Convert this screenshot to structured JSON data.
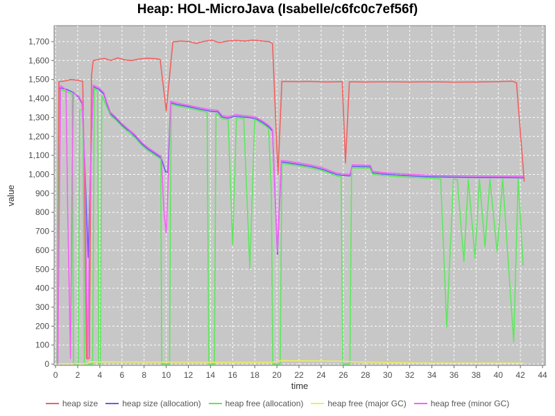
{
  "title": "Heap: HOL-MicroJava (Isabelle/c6fc0c7ef56f)",
  "chart_data": {
    "type": "line",
    "title": "Heap: HOL-MicroJava (Isabelle/c6fc0c7ef56f)",
    "xlabel": "time",
    "ylabel": "value",
    "xlim": [
      -0.13,
      44.25
    ],
    "ylim": [
      -7,
      1784
    ],
    "x_ticks": [
      0,
      2,
      4,
      6,
      8,
      10,
      12,
      14,
      16,
      18,
      20,
      22,
      24,
      26,
      28,
      30,
      32,
      34,
      36,
      38,
      40,
      42,
      44
    ],
    "y_ticks": [
      0,
      100,
      200,
      300,
      400,
      500,
      600,
      700,
      800,
      900,
      1000,
      1100,
      1200,
      1300,
      1400,
      1500,
      1600,
      1700
    ],
    "y_tick_labels": [
      "0",
      "100",
      "200",
      "300",
      "400",
      "500",
      "600",
      "700",
      "800",
      "900",
      "1,000",
      "1,100",
      "1,200",
      "1,300",
      "1,400",
      "1,500",
      "1,600",
      "1,700"
    ],
    "grid": true,
    "legend_position": "bottom",
    "colors": {
      "plot_bg": "#c7c7c7",
      "plot_border": "#7f7f7f",
      "grid": "#ffffff",
      "tick": "#666666",
      "tick_label": "#4d4d4d",
      "axis_label": "#333333",
      "title": "#000000",
      "legend_label": "#555555"
    },
    "series": [
      {
        "name": "heap size",
        "color": "#f35f5f",
        "points": [
          [
            0.15,
            15
          ],
          [
            0.3,
            1488
          ],
          [
            0.8,
            1492
          ],
          [
            1.4,
            1500
          ],
          [
            2.0,
            1496
          ],
          [
            2.45,
            1490
          ],
          [
            2.6,
            1000
          ],
          [
            2.8,
            30
          ],
          [
            3.05,
            30
          ],
          [
            3.25,
            1520
          ],
          [
            3.4,
            1600
          ],
          [
            3.9,
            1606
          ],
          [
            4.4,
            1612
          ],
          [
            5.0,
            1600
          ],
          [
            5.6,
            1614
          ],
          [
            6.2,
            1604
          ],
          [
            6.9,
            1600
          ],
          [
            7.5,
            1608
          ],
          [
            8.3,
            1612
          ],
          [
            9.0,
            1610
          ],
          [
            9.45,
            1606
          ],
          [
            10.0,
            1335
          ],
          [
            10.6,
            1698
          ],
          [
            11.3,
            1703
          ],
          [
            12.1,
            1700
          ],
          [
            12.7,
            1690
          ],
          [
            13.3,
            1700
          ],
          [
            14.1,
            1708
          ],
          [
            14.8,
            1694
          ],
          [
            15.5,
            1703
          ],
          [
            16.3,
            1706
          ],
          [
            17.1,
            1703
          ],
          [
            17.9,
            1708
          ],
          [
            18.7,
            1703
          ],
          [
            19.3,
            1700
          ],
          [
            19.6,
            1690
          ],
          [
            20.1,
            1000
          ],
          [
            20.45,
            1490
          ],
          [
            21.5,
            1489
          ],
          [
            23.0,
            1490
          ],
          [
            24.6,
            1487
          ],
          [
            25.9,
            1489
          ],
          [
            26.2,
            1060
          ],
          [
            26.55,
            1488
          ],
          [
            28.0,
            1487
          ],
          [
            30.0,
            1488
          ],
          [
            32.0,
            1487
          ],
          [
            34.0,
            1488
          ],
          [
            36.0,
            1486
          ],
          [
            38.0,
            1487
          ],
          [
            40.0,
            1489
          ],
          [
            41.3,
            1491
          ],
          [
            41.65,
            1483
          ],
          [
            42.35,
            962
          ]
        ]
      },
      {
        "name": "heap size (allocation)",
        "color": "#5f5fe8",
        "points": [
          [
            0.15,
            10
          ],
          [
            0.4,
            1456
          ],
          [
            1.0,
            1448
          ],
          [
            1.6,
            1432
          ],
          [
            2.1,
            1406
          ],
          [
            2.4,
            1372
          ],
          [
            2.65,
            1050
          ],
          [
            2.95,
            562
          ],
          [
            3.15,
            1000
          ],
          [
            3.4,
            1462
          ],
          [
            3.9,
            1449
          ],
          [
            4.35,
            1424
          ],
          [
            4.65,
            1368
          ],
          [
            4.95,
            1320
          ],
          [
            5.5,
            1291
          ],
          [
            6.0,
            1260
          ],
          [
            6.45,
            1237
          ],
          [
            6.7,
            1228
          ],
          [
            7.2,
            1200
          ],
          [
            7.75,
            1163
          ],
          [
            8.35,
            1133
          ],
          [
            8.85,
            1114
          ],
          [
            9.3,
            1096
          ],
          [
            9.55,
            1086
          ],
          [
            9.95,
            1012
          ],
          [
            10.15,
            1012
          ],
          [
            10.4,
            1377
          ],
          [
            11.0,
            1368
          ],
          [
            12.0,
            1357
          ],
          [
            13.0,
            1344
          ],
          [
            14.0,
            1333
          ],
          [
            14.65,
            1330
          ],
          [
            15.05,
            1302
          ],
          [
            15.6,
            1296
          ],
          [
            16.3,
            1307
          ],
          [
            17.0,
            1302
          ],
          [
            17.6,
            1299
          ],
          [
            18.2,
            1291
          ],
          [
            18.75,
            1272
          ],
          [
            19.25,
            1251
          ],
          [
            19.6,
            1228
          ],
          [
            20.05,
            578
          ],
          [
            20.4,
            1065
          ],
          [
            21.0,
            1061
          ],
          [
            22.0,
            1052
          ],
          [
            23.0,
            1042
          ],
          [
            24.0,
            1029
          ],
          [
            24.8,
            1012
          ],
          [
            25.4,
            999
          ],
          [
            26.0,
            994
          ],
          [
            26.6,
            992
          ],
          [
            26.8,
            1042
          ],
          [
            27.6,
            1041
          ],
          [
            28.45,
            1040
          ],
          [
            28.65,
            1008
          ],
          [
            29.5,
            1002
          ],
          [
            30.5,
            998
          ],
          [
            31.5,
            994
          ],
          [
            32.5,
            991
          ],
          [
            33.5,
            988
          ],
          [
            34.5,
            986
          ],
          [
            36.0,
            985
          ],
          [
            38.0,
            984
          ],
          [
            40.0,
            983
          ],
          [
            42.3,
            982
          ]
        ]
      },
      {
        "name": "heap free (allocation)",
        "color": "#5ce85c",
        "points": [
          [
            0.15,
            5
          ],
          [
            0.4,
            1446
          ],
          [
            1.0,
            1438
          ],
          [
            1.5,
            1422
          ],
          [
            1.62,
            0
          ],
          [
            2.05,
            0
          ],
          [
            2.18,
            1342
          ],
          [
            2.48,
            1336
          ],
          [
            2.6,
            0
          ],
          [
            3.35,
            0
          ],
          [
            3.5,
            1452
          ],
          [
            3.8,
            1440
          ],
          [
            3.9,
            0
          ],
          [
            4.05,
            0
          ],
          [
            4.18,
            1415
          ],
          [
            4.95,
            1312
          ],
          [
            5.5,
            1283
          ],
          [
            6.0,
            1252
          ],
          [
            6.45,
            1229
          ],
          [
            7.2,
            1192
          ],
          [
            7.75,
            1155
          ],
          [
            8.35,
            1125
          ],
          [
            8.85,
            1106
          ],
          [
            9.3,
            1088
          ],
          [
            9.5,
            1080
          ],
          [
            9.6,
            0
          ],
          [
            10.3,
            0
          ],
          [
            10.45,
            1369
          ],
          [
            11.0,
            1360
          ],
          [
            12.0,
            1349
          ],
          [
            13.0,
            1336
          ],
          [
            13.7,
            1328
          ],
          [
            13.85,
            0
          ],
          [
            14.35,
            0
          ],
          [
            14.5,
            1322
          ],
          [
            15.05,
            1294
          ],
          [
            15.6,
            1288
          ],
          [
            16.0,
            630
          ],
          [
            16.35,
            1299
          ],
          [
            17.0,
            1294
          ],
          [
            17.55,
            505
          ],
          [
            18.0,
            1290
          ],
          [
            18.75,
            1264
          ],
          [
            19.25,
            1243
          ],
          [
            19.5,
            900
          ],
          [
            19.62,
            0
          ],
          [
            20.3,
            0
          ],
          [
            20.45,
            1057
          ],
          [
            21.0,
            1053
          ],
          [
            22.0,
            1044
          ],
          [
            23.0,
            1034
          ],
          [
            24.0,
            1021
          ],
          [
            24.8,
            1004
          ],
          [
            25.4,
            991
          ],
          [
            25.8,
            986
          ],
          [
            25.95,
            0
          ],
          [
            26.6,
            0
          ],
          [
            26.75,
            1034
          ],
          [
            28.4,
            1032
          ],
          [
            28.65,
            1000
          ],
          [
            29.5,
            994
          ],
          [
            30.5,
            990
          ],
          [
            31.5,
            986
          ],
          [
            32.5,
            983
          ],
          [
            33.5,
            980
          ],
          [
            34.4,
            978
          ],
          [
            34.8,
            975
          ],
          [
            35.35,
            195
          ],
          [
            35.95,
            975
          ],
          [
            36.3,
            972
          ],
          [
            36.9,
            540
          ],
          [
            37.3,
            973
          ],
          [
            37.9,
            557
          ],
          [
            38.3,
            974
          ],
          [
            38.8,
            618
          ],
          [
            39.25,
            975
          ],
          [
            39.9,
            590
          ],
          [
            40.4,
            976
          ],
          [
            41.4,
            116
          ],
          [
            41.8,
            975
          ],
          [
            42.25,
            519
          ]
        ]
      },
      {
        "name": "heap free (major GC)",
        "color": "#eded5e",
        "points": [
          [
            0.15,
            2
          ],
          [
            2.9,
            2
          ],
          [
            3.05,
            12
          ],
          [
            6.0,
            11
          ],
          [
            10.0,
            10
          ],
          [
            14.0,
            9
          ],
          [
            19.6,
            9
          ],
          [
            20.35,
            18
          ],
          [
            23.0,
            17
          ],
          [
            26.0,
            15
          ],
          [
            27.0,
            12
          ],
          [
            29.0,
            9
          ],
          [
            32.0,
            6
          ],
          [
            36.0,
            5
          ],
          [
            42.3,
            5
          ]
        ]
      },
      {
        "name": "heap free (minor GC)",
        "color": "#f75ff7",
        "points": [
          [
            0.2,
            0
          ],
          [
            0.45,
            1468
          ],
          [
            0.95,
            1446
          ],
          [
            1.1,
            800
          ],
          [
            1.35,
            30
          ],
          [
            1.5,
            1000
          ],
          [
            1.6,
            1428
          ],
          [
            2.1,
            1412
          ],
          [
            2.4,
            1380
          ],
          [
            2.65,
            1050
          ],
          [
            2.9,
            25
          ],
          [
            3.15,
            1000
          ],
          [
            3.4,
            1470
          ],
          [
            3.9,
            1457
          ],
          [
            4.35,
            1432
          ],
          [
            4.65,
            1377
          ],
          [
            4.95,
            1329
          ],
          [
            5.5,
            1299
          ],
          [
            6.0,
            1268
          ],
          [
            6.45,
            1245
          ],
          [
            7.2,
            1208
          ],
          [
            7.75,
            1171
          ],
          [
            8.35,
            1141
          ],
          [
            8.85,
            1122
          ],
          [
            9.3,
            1104
          ],
          [
            9.55,
            1094
          ],
          [
            9.8,
            800
          ],
          [
            10.0,
            693
          ],
          [
            10.2,
            1000
          ],
          [
            10.4,
            1385
          ],
          [
            11.0,
            1376
          ],
          [
            12.0,
            1364
          ],
          [
            13.0,
            1352
          ],
          [
            14.0,
            1341
          ],
          [
            14.65,
            1338
          ],
          [
            15.05,
            1310
          ],
          [
            15.6,
            1304
          ],
          [
            16.3,
            1315
          ],
          [
            17.0,
            1310
          ],
          [
            17.6,
            1307
          ],
          [
            18.2,
            1299
          ],
          [
            18.75,
            1280
          ],
          [
            19.25,
            1259
          ],
          [
            19.6,
            1236
          ],
          [
            20.05,
            592
          ],
          [
            20.4,
            1073
          ],
          [
            21.0,
            1069
          ],
          [
            22.0,
            1060
          ],
          [
            23.0,
            1050
          ],
          [
            24.0,
            1037
          ],
          [
            24.8,
            1020
          ],
          [
            25.4,
            1007
          ],
          [
            26.0,
            1002
          ],
          [
            26.6,
            1000
          ],
          [
            26.8,
            1050
          ],
          [
            27.6,
            1049
          ],
          [
            28.45,
            1048
          ],
          [
            28.65,
            1016
          ],
          [
            29.5,
            1010
          ],
          [
            30.5,
            1006
          ],
          [
            31.5,
            1002
          ],
          [
            32.5,
            999
          ],
          [
            33.5,
            996
          ],
          [
            34.5,
            994
          ],
          [
            36.0,
            993
          ],
          [
            38.0,
            992
          ],
          [
            40.0,
            991
          ],
          [
            42.3,
            990
          ]
        ]
      }
    ]
  },
  "legend": {
    "items": [
      "heap size",
      "heap size (allocation)",
      "heap free (allocation)",
      "heap free (major GC)",
      "heap free (minor GC)"
    ]
  }
}
